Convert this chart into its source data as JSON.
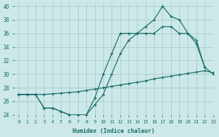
{
  "xlabel": "Humidex (Indice chaleur)",
  "background_color": "#cce8e8",
  "line_color": "#1a6e6a",
  "grid_color": "#aacaca",
  "xlim": [
    -0.5,
    23
  ],
  "ylim": [
    24,
    40.5
  ],
  "xticks": [
    0,
    1,
    2,
    3,
    4,
    5,
    6,
    7,
    8,
    9,
    10,
    11,
    12,
    13,
    14,
    15,
    16,
    17,
    18,
    19,
    20,
    21,
    22,
    23
  ],
  "yticks": [
    24,
    26,
    28,
    30,
    32,
    34,
    36,
    38,
    40
  ],
  "line1_x": [
    0,
    1,
    2,
    3,
    4,
    5,
    6,
    7,
    8,
    9,
    10,
    11,
    12,
    13,
    14,
    15,
    16,
    17,
    18,
    19,
    20,
    21,
    22
  ],
  "line1_y": [
    27,
    27,
    27,
    25,
    25,
    24.5,
    24,
    24,
    24,
    26.5,
    30,
    33,
    36,
    36,
    36,
    37,
    38,
    40,
    38.5,
    38,
    36,
    35,
    31
  ],
  "line2_x": [
    0,
    1,
    2,
    3,
    4,
    5,
    6,
    7,
    8,
    9,
    10,
    11,
    12,
    13,
    14,
    15,
    16,
    17,
    18,
    19,
    20,
    21,
    22,
    23
  ],
  "line2_y": [
    27,
    27,
    27,
    25,
    25,
    24.5,
    24,
    24,
    24,
    25.5,
    27,
    30,
    33,
    35,
    36,
    36,
    36,
    37,
    37,
    36,
    36,
    34.5,
    31,
    30
  ],
  "line3_x": [
    0,
    1,
    2,
    3,
    4,
    5,
    6,
    7,
    8,
    9,
    10,
    11,
    12,
    13,
    14,
    15,
    16,
    17,
    18,
    19,
    20,
    21,
    22,
    23
  ],
  "line3_y": [
    27,
    27,
    27,
    27,
    27.1,
    27.2,
    27.3,
    27.4,
    27.6,
    27.8,
    28.0,
    28.2,
    28.4,
    28.6,
    28.8,
    29.0,
    29.3,
    29.5,
    29.7,
    29.9,
    30.1,
    30.3,
    30.5,
    30.2
  ]
}
